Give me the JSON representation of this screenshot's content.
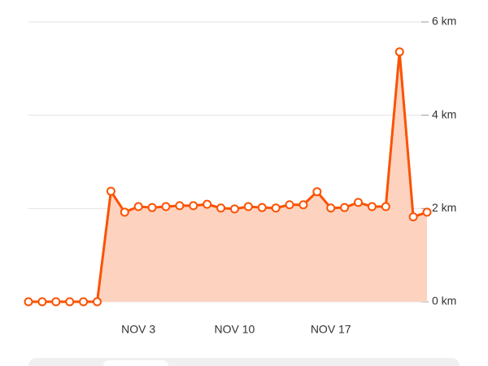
{
  "chart_data": {
    "type": "area-line",
    "categories": [
      null,
      null,
      null,
      null,
      null,
      null,
      null,
      null,
      "NOV 3",
      null,
      null,
      null,
      null,
      null,
      null,
      "NOV 10",
      null,
      null,
      null,
      null,
      null,
      null,
      "NOV 17",
      null,
      null,
      null,
      null,
      null,
      null,
      null
    ],
    "series": [
      {
        "color": "#fc5200",
        "fill": "#fdd3c0",
        "values": [
          0,
          0,
          0,
          0,
          0,
          0,
          2.37,
          1.92,
          2.04,
          2.02,
          2.04,
          2.06,
          2.06,
          2.09,
          2.01,
          1.99,
          2.04,
          2.02,
          2.01,
          2.08,
          2.08,
          2.36,
          2.01,
          2.02,
          2.13,
          2.04,
          2.04,
          5.36,
          1.82,
          1.92
        ]
      }
    ],
    "ylim": [
      0,
      6
    ],
    "yticks": [
      {
        "value": 0,
        "label": "0 km"
      },
      {
        "value": 2,
        "label": "2 km"
      },
      {
        "value": 4,
        "label": "4 km"
      },
      {
        "value": 6,
        "label": "6 km"
      }
    ],
    "grid": true
  }
}
